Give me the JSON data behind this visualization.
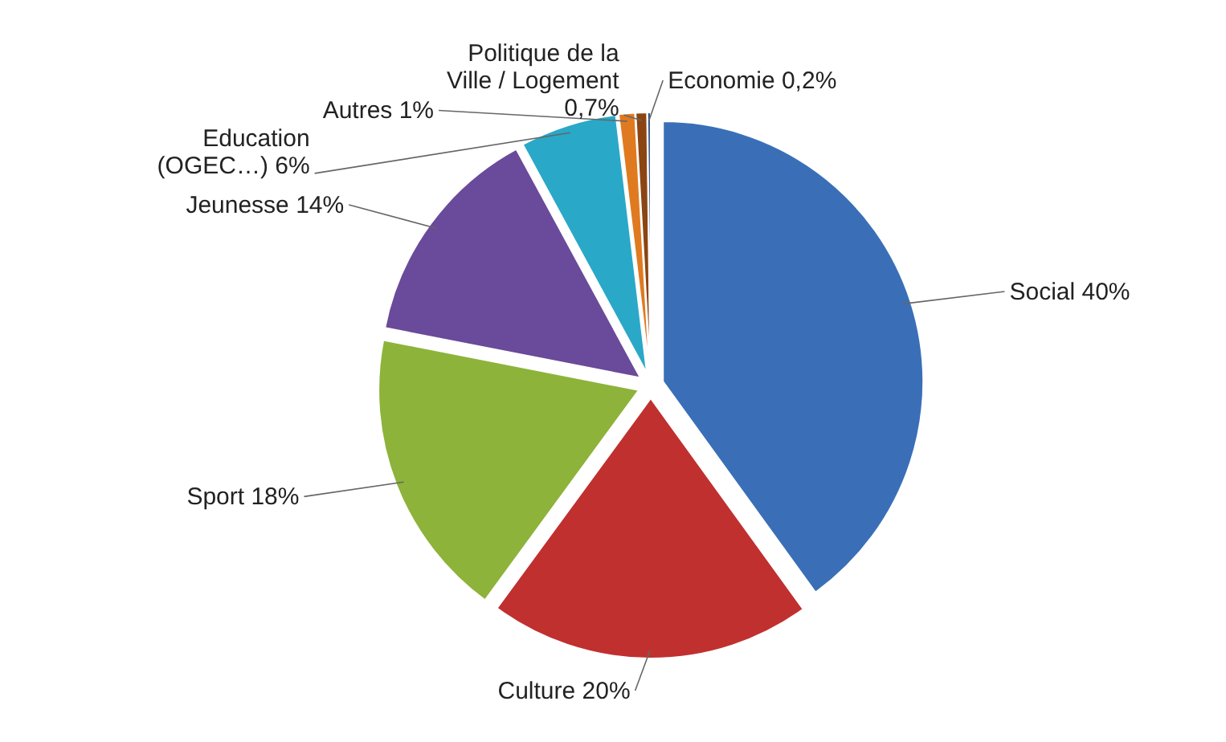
{
  "chart_data": {
    "type": "pie",
    "categories": [
      "Social",
      "Culture",
      "Sport",
      "Jeunesse",
      "Education (OGEC…)",
      "Autres",
      "Politique de la Ville / Logement",
      "Economie"
    ],
    "values": [
      40,
      20,
      18,
      14,
      6,
      1,
      0.7,
      0.2
    ],
    "value_labels": [
      "40%",
      "20%",
      "18%",
      "14%",
      "6%",
      "1%",
      "0,7%",
      "0,2%"
    ],
    "colors": [
      "#3a6fb8",
      "#c0302f",
      "#8db33a",
      "#6a4a9a",
      "#2aa8c8",
      "#e07a20",
      "#8b4513",
      "#2a4d80"
    ]
  }
}
